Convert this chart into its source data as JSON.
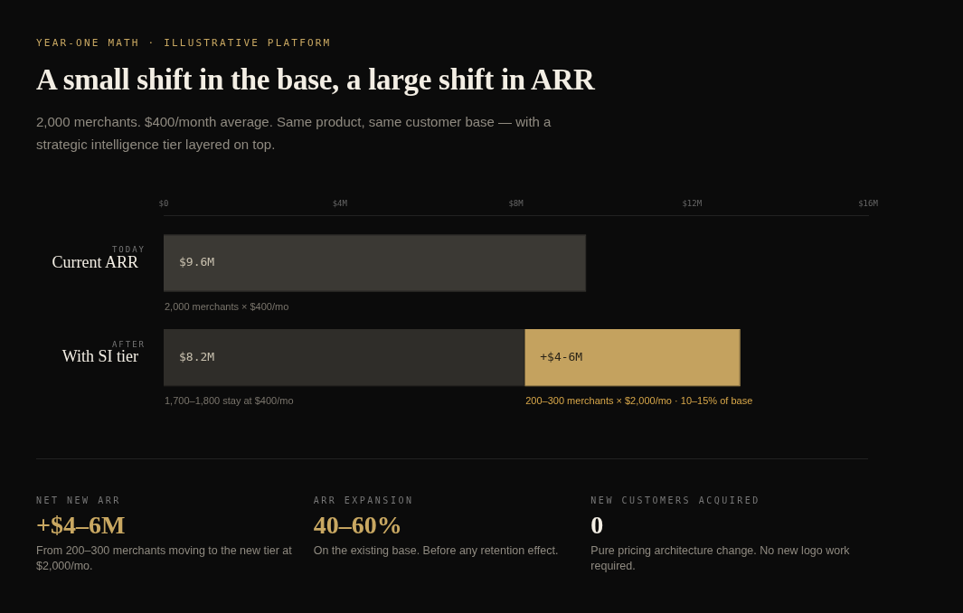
{
  "chart_data": [
    {
      "type": "bar",
      "orientation": "horizontal",
      "stacked": true,
      "title": "A small shift in the base, a large shift in ARR",
      "subtitle": "2,000 merchants. $400/month average. Same product, same customer base — with a strategic intelligence tier layered on top.",
      "categories": [
        "Current ARR",
        "With SI tier"
      ],
      "series": [
        {
          "colors": [
            "#3b3934",
            "#2f2d29"
          ],
          "values": [
            9.6,
            8.2
          ],
          "value_labels": [
            "$9.6M",
            "$8.2M"
          ]
        },
        {
          "color": "#c4a25f",
          "values": [
            null,
            4.9
          ],
          "value_labels": [
            null,
            "+$4-6M"
          ]
        }
      ],
      "xlim": [
        0,
        16
      ],
      "xticks": [
        {
          "value": 0,
          "label": "$0"
        },
        {
          "value": 4,
          "label": "$4M"
        },
        {
          "value": 8,
          "label": "$8M"
        },
        {
          "value": 12,
          "label": "$12M"
        },
        {
          "value": 16,
          "label": "$16M"
        }
      ],
      "legend": false,
      "grid": false,
      "annotations": [
        "YEAR-ONE MATH · ILLUSTRATIVE PLATFORM",
        "TODAY",
        "AFTER",
        "2,000 merchants × $400/mo",
        "1,700–1,800 stay at $400/mo",
        "200–300 merchants × $2,000/mo · 10–15% of base"
      ]
    },
    {
      "type": "other",
      "annotations": [
        "NET NEW ARR",
        "+$4–6M",
        "From 200–300 merchants moving to the new tier at $2,000/mo.",
        "ARR EXPANSION",
        "40–60%",
        "On the existing base. Before any retention effect.",
        "NEW CUSTOMERS ACQUIRED",
        "0",
        "Pure pricing architecture change. No new logo work required."
      ]
    }
  ]
}
